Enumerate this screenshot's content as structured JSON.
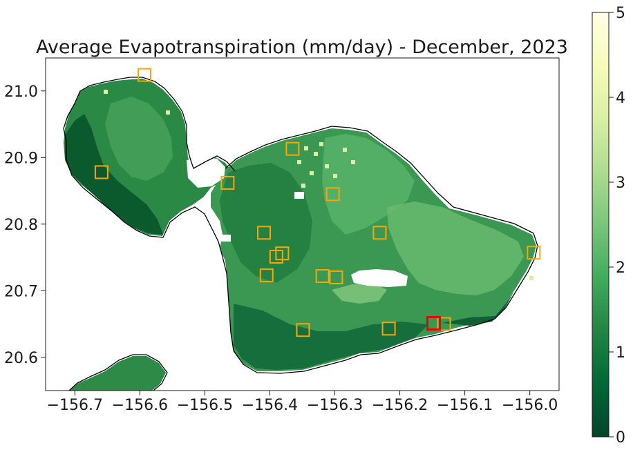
{
  "chart_data": {
    "type": "heatmap",
    "title": "Average Evapotranspiration (mm/day) - December, 2023",
    "xlabel": "",
    "ylabel": "",
    "xlim": [
      -156.745,
      -155.955
    ],
    "ylim": [
      20.55,
      21.05
    ],
    "x_ticks": [
      -156.7,
      -156.6,
      -156.5,
      -156.4,
      -156.3,
      -156.2,
      -156.1,
      -156.0
    ],
    "x_tick_labels": [
      "−156.7",
      "−156.6",
      "−156.5",
      "−156.4",
      "−156.3",
      "−156.2",
      "−156.1",
      "−156.0"
    ],
    "y_ticks": [
      20.6,
      20.7,
      20.8,
      20.9,
      21.0
    ],
    "y_tick_labels": [
      "20.6",
      "20.7",
      "20.8",
      "20.9",
      "21.0"
    ],
    "grid": false,
    "colorbar": {
      "colormap": "YlGn_r",
      "vmin": 0,
      "vmax": 5,
      "ticks": [
        0,
        1,
        2,
        3,
        4,
        5
      ],
      "tick_labels": [
        "0",
        "1",
        "2",
        "3",
        "4",
        "5"
      ],
      "colors": [
        "#004529",
        "#006837",
        "#238443",
        "#41ab5d",
        "#78c679",
        "#addd8e",
        "#d9f0a3",
        "#f7fcb9",
        "#ffffe5"
      ]
    },
    "stations_orange": [
      {
        "lon": -156.593,
        "lat": 21.024
      },
      {
        "lon": -156.659,
        "lat": 20.878
      },
      {
        "lon": -156.465,
        "lat": 20.862
      },
      {
        "lon": -156.365,
        "lat": 20.913
      },
      {
        "lon": -156.303,
        "lat": 20.845
      },
      {
        "lon": -156.409,
        "lat": 20.787
      },
      {
        "lon": -156.231,
        "lat": 20.787
      },
      {
        "lon": -156.381,
        "lat": 20.756
      },
      {
        "lon": -156.39,
        "lat": 20.751
      },
      {
        "lon": -156.405,
        "lat": 20.723
      },
      {
        "lon": -156.319,
        "lat": 20.722
      },
      {
        "lon": -156.298,
        "lat": 20.72
      },
      {
        "lon": -156.349,
        "lat": 20.641
      },
      {
        "lon": -156.217,
        "lat": 20.643
      },
      {
        "lon": -156.132,
        "lat": 20.65
      },
      {
        "lon": -155.994,
        "lat": 20.757
      }
    ],
    "stations_red": [
      {
        "lon": -156.148,
        "lat": 20.651
      }
    ],
    "colors": {
      "station_orange": "#ffa500",
      "station_red": "#ee0000",
      "coastline": "#000000",
      "no_data": "#ffffff"
    }
  }
}
